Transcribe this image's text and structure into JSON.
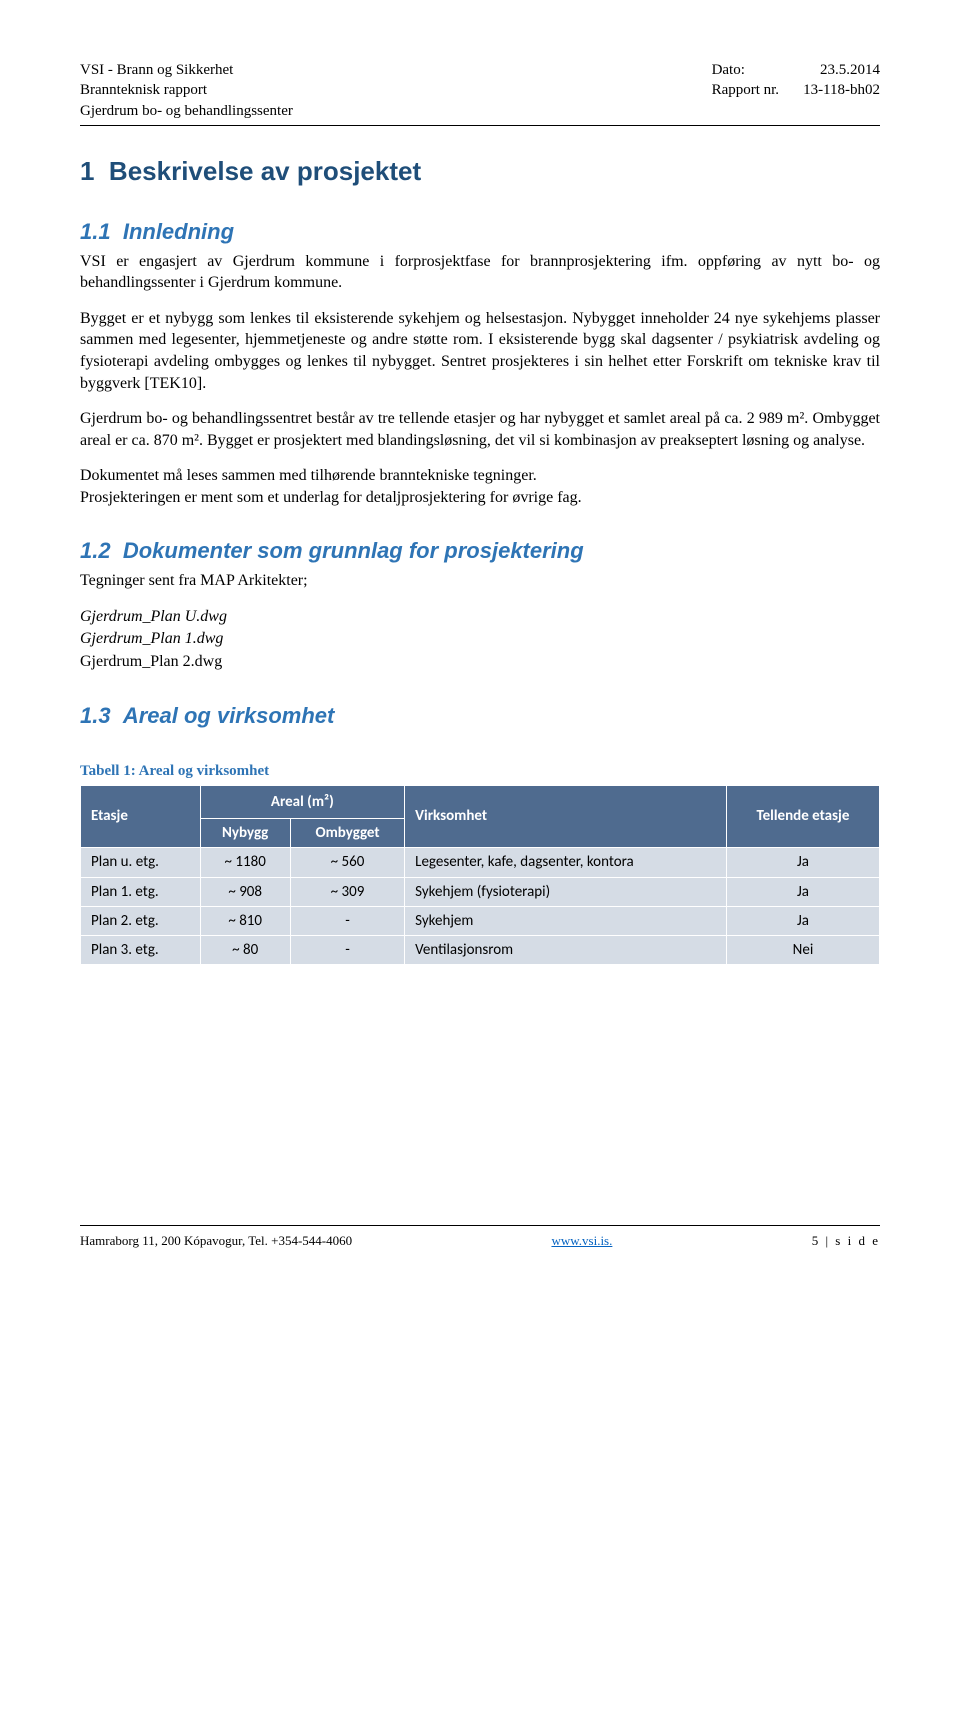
{
  "header": {
    "company": "VSI - Brann og Sikkerhet",
    "report_type": "Brannteknisk rapport",
    "project": "Gjerdrum bo- og behandlingssenter",
    "date_label": "Dato:",
    "date_value": "23.5.2014",
    "report_label": "Rapport nr.",
    "report_value": "13-118-bh02"
  },
  "s1": {
    "num": "1",
    "title": "Beskrivelse av prosjektet",
    "s11_num": "1.1",
    "s11_title": "Innledning",
    "p1": "VSI er engasjert av Gjerdrum kommune i forprosjektfase for brannprosjektering ifm. oppføring av nytt bo- og behandlingssenter i Gjerdrum kommune.",
    "p2": "Bygget er et nybygg som lenkes til eksisterende sykehjem og helsestasjon. Nybygget inneholder 24 nye sykehjems plasser sammen med legesenter, hjemmetjeneste og andre støtte rom. I eksisterende bygg skal dagsenter / psykiatrisk avdeling og fysioterapi avdeling ombygges og lenkes til nybygget. Sentret prosjekteres i sin helhet etter Forskrift om tekniske krav til byggverk [TEK10].",
    "p3": "Gjerdrum bo- og behandlingssentret består av tre tellende etasjer og har nybygget et samlet areal på ca. 2 989 m². Ombygget areal er ca. 870 m². Bygget er prosjektert med blandingsløsning, det vil si kombinasjon av preakseptert løsning og analyse.",
    "p4": "Dokumentet må leses sammen med tilhørende branntekniske tegninger.",
    "p5": "Prosjekteringen er ment som et underlag for detaljprosjektering for øvrige fag."
  },
  "s12": {
    "num": "1.2",
    "title": "Dokumenter som grunnlag for prosjektering",
    "intro": "Tegninger sent fra MAP Arkitekter;",
    "files": [
      "Gjerdrum_Plan U.dwg",
      "Gjerdrum_Plan 1.dwg",
      "Gjerdrum_Plan 2.dwg"
    ]
  },
  "s13": {
    "num": "1.3",
    "title": "Areal og virksomhet",
    "table_caption": "Tabell 1: Areal og virksomhet",
    "col_etasje": "Etasje",
    "col_areal": "Areal (m²)",
    "col_virksomhet": "Virksomhet",
    "col_tellende": "Tellende etasje",
    "sub_nybygg": "Nybygg",
    "sub_ombygget": "Ombygget",
    "rows": [
      {
        "etasje": "Plan u. etg.",
        "nybygg": "~ 1180",
        "ombygget": "~ 560",
        "virksomhet": "Legesenter, kafe, dagsenter, kontora",
        "tellende": "Ja"
      },
      {
        "etasje": "Plan 1. etg.",
        "nybygg": "~ 908",
        "ombygget": "~ 309",
        "virksomhet": "Sykehjem (fysioterapi)",
        "tellende": "Ja"
      },
      {
        "etasje": "Plan 2. etg.",
        "nybygg": "~ 810",
        "ombygget": "-",
        "virksomhet": "Sykehjem",
        "tellende": "Ja"
      },
      {
        "etasje": "Plan 3. etg.",
        "nybygg": "~ 80",
        "ombygget": "-",
        "virksomhet": "Ventilasjonsrom",
        "tellende": "Nei"
      }
    ]
  },
  "footer": {
    "address": "Hamraborg 11, 200 Kópavogur, Tel. +354-544-4060",
    "url": "www.vsi.is.",
    "page": "5 | s i d e"
  }
}
